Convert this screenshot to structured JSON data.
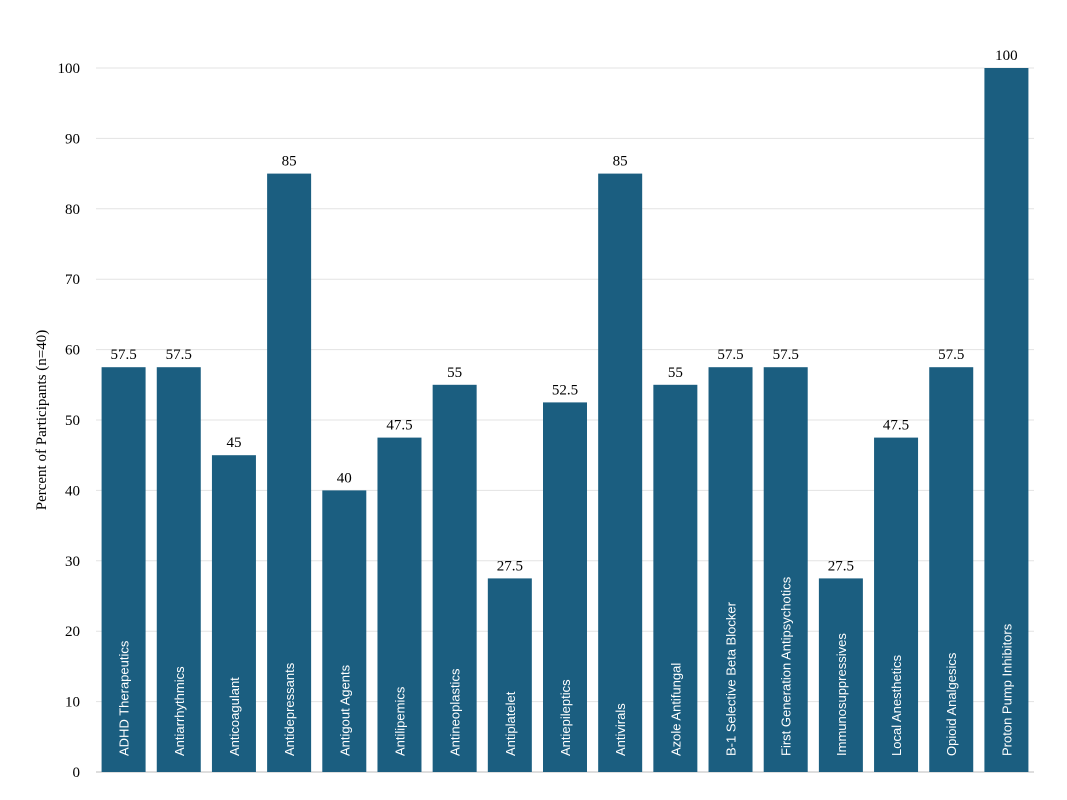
{
  "chart_data": {
    "type": "bar",
    "title": "",
    "xlabel": "",
    "ylabel": "Percent of Participants (n=40)",
    "ylim": [
      0,
      100
    ],
    "yticks": [
      0,
      10,
      20,
      30,
      40,
      50,
      60,
      70,
      80,
      90,
      100
    ],
    "grid": true,
    "bar_color": "#1b5e80",
    "highlight_color": "#0f5f82",
    "categories": [
      "ADHD Therapeutics",
      "Antiarrhythmics",
      "Anticoagulant",
      "Antidepressants",
      "Antigout Agents",
      "Antilipemics",
      "Antineoplastics",
      "Antiplatelet",
      "Antiepileptics",
      "Antivirals",
      "Azole Antifungal",
      "B-1 Selective Beta Blocker",
      "First Generation Antipsychotics",
      "Immunosuppressives",
      "Local Anesthetics",
      "Opioid Analgesics",
      "Proton Pump Inhibitors"
    ],
    "values": [
      57.5,
      57.5,
      45,
      85,
      40,
      47.5,
      55,
      27.5,
      52.5,
      85,
      55,
      57.5,
      57.5,
      27.5,
      47.5,
      57.5,
      100
    ]
  }
}
